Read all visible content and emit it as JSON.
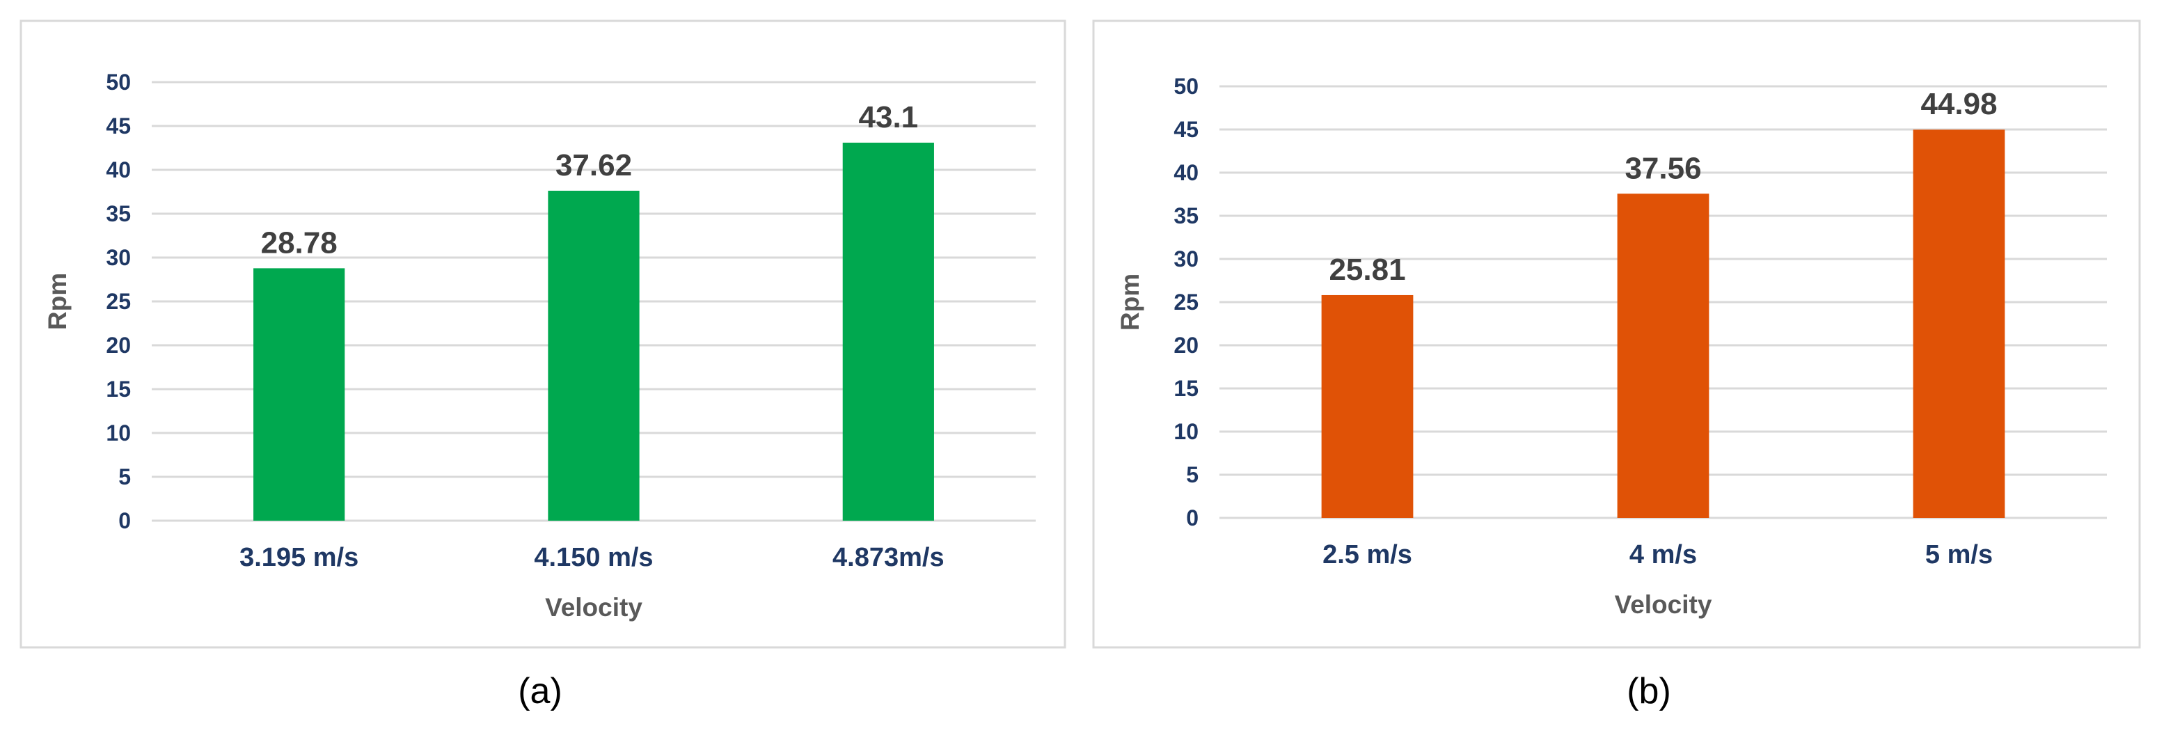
{
  "chart_data": [
    {
      "type": "bar",
      "panel_label": "(a)",
      "categories": [
        "3.195 m/s",
        "4.150 m/s",
        "4.873m/s"
      ],
      "values": [
        28.78,
        37.62,
        43.1
      ],
      "data_labels": [
        "28.78",
        "37.62",
        "43.1"
      ],
      "xlabel": "Velocity",
      "ylabel": "Rpm",
      "ylim": [
        0,
        50
      ],
      "yticks": [
        "0",
        "5",
        "10",
        "15",
        "20",
        "25",
        "30",
        "35",
        "40",
        "45",
        "50"
      ],
      "grid": true,
      "bar_color": "#00a84f"
    },
    {
      "type": "bar",
      "panel_label": "(b)",
      "categories": [
        "2.5 m/s",
        "4 m/s",
        "5 m/s"
      ],
      "values": [
        25.81,
        37.56,
        44.98
      ],
      "data_labels": [
        "25.81",
        "37.56",
        "44.98"
      ],
      "xlabel": "Velocity",
      "ylabel": "Rpm",
      "ylim": [
        0,
        50
      ],
      "yticks": [
        "0",
        "5",
        "10",
        "15",
        "20",
        "25",
        "30",
        "35",
        "40",
        "45",
        "50"
      ],
      "grid": true,
      "bar_color": "#e05206"
    }
  ]
}
